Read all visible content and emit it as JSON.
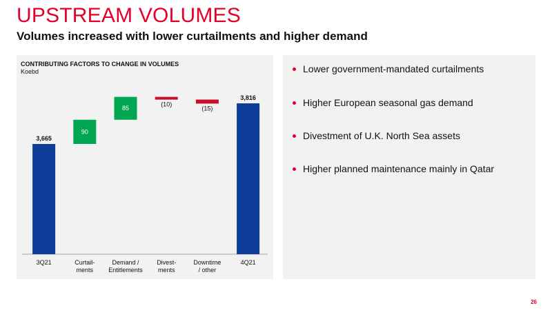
{
  "slide": {
    "title": "UPSTREAM VOLUMES",
    "subtitle": "Volumes increased with lower curtailments and higher demand",
    "page_number": "26"
  },
  "bullets": [
    "Lower government-mandated curtailments",
    "Higher European seasonal gas demand",
    "Divestment of U.K. North Sea assets",
    "Higher planned maintenance mainly in Qatar"
  ],
  "colors": {
    "accent": "#e4002b",
    "total_bar": "#0f3d9a",
    "increase_bar": "#00a651",
    "decrease_bar": "#c8102e",
    "panel_bg": "#f2f2f2"
  },
  "chart_data": {
    "type": "bar",
    "subtype": "waterfall",
    "title": "CONTRIBUTING FACTORS TO CHANGE IN VOLUMES",
    "unit": "Koebd",
    "categories": [
      [
        "3Q21"
      ],
      [
        "Curtail-",
        "ments"
      ],
      [
        "Demand /",
        "Entitlements"
      ],
      [
        "Divest-",
        "ments"
      ],
      [
        "Downtime",
        "/ other"
      ],
      [
        "4Q21"
      ]
    ],
    "bars": [
      {
        "kind": "total",
        "value": 3665,
        "label": "3,665"
      },
      {
        "kind": "increase",
        "value": 90,
        "label": "90"
      },
      {
        "kind": "increase",
        "value": 85,
        "label": "85"
      },
      {
        "kind": "decrease",
        "value": -10,
        "label": "(10)"
      },
      {
        "kind": "decrease",
        "value": -15,
        "label": "(15)"
      },
      {
        "kind": "total",
        "value": 3816,
        "label": "3,816"
      }
    ]
  }
}
